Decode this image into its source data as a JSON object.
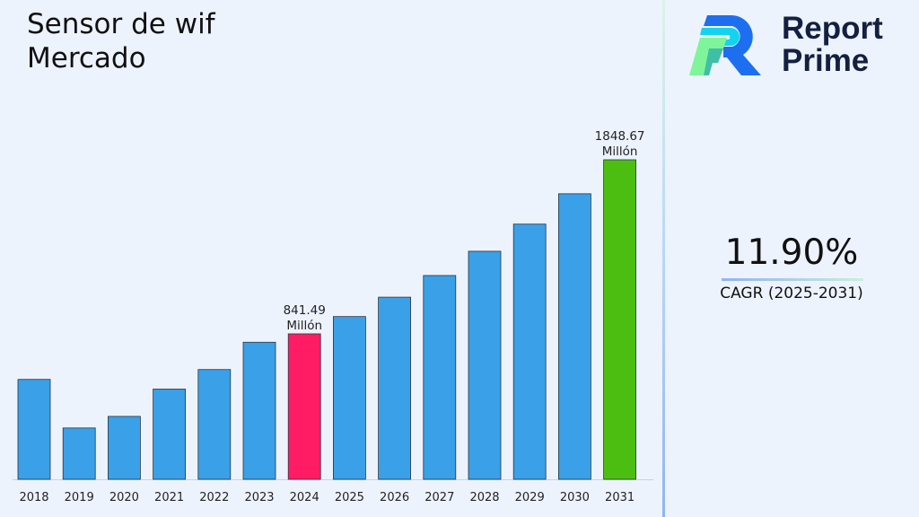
{
  "chart_data": {
    "type": "bar",
    "title": "Sensor de wif\nMercado",
    "categories": [
      "2018",
      "2019",
      "2020",
      "2021",
      "2022",
      "2023",
      "2024",
      "2025",
      "2026",
      "2027",
      "2028",
      "2029",
      "2030",
      "2031"
    ],
    "values": [
      578,
      297,
      364,
      522,
      635,
      793,
      841.49,
      941.6,
      1053.7,
      1179.1,
      1319.4,
      1476.4,
      1652.1,
      1848.67
    ],
    "unit": "Millón",
    "data_labels": [
      {
        "category": "2024",
        "text": "841.49\nMillón"
      },
      {
        "category": "2031",
        "text": "1848.67\nMillón"
      }
    ],
    "colors": {
      "default": "#3aa0e8",
      "highlight_2024": "#ff1c65",
      "highlight_2031": "#4cbe12"
    },
    "ylim": [
      0,
      1848.67
    ],
    "grid": false,
    "legend": "none"
  },
  "logo": {
    "text": "Report\nPrime"
  },
  "cagr": {
    "value": "11.90%",
    "label": "CAGR (2025-2031)"
  }
}
